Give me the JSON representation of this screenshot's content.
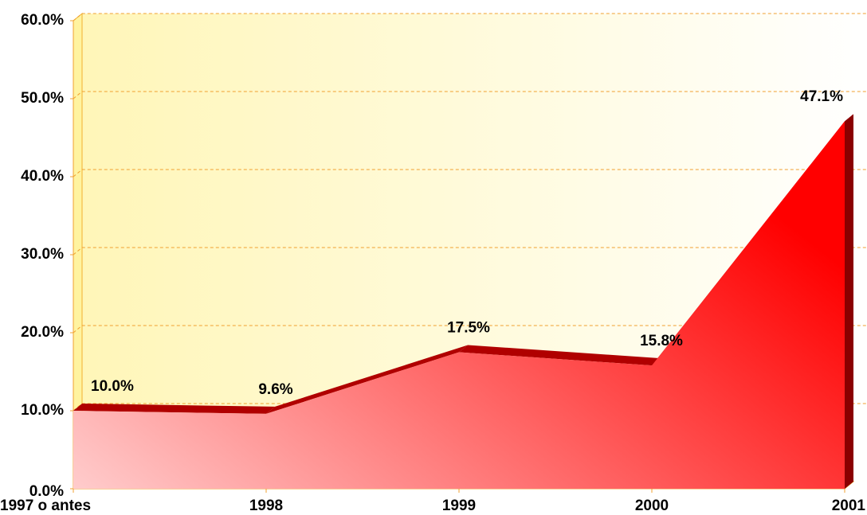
{
  "chart_data": {
    "type": "area",
    "categories": [
      "1997 o antes",
      "1998",
      "1999",
      "2000",
      "2001"
    ],
    "values": [
      10.0,
      9.6,
      17.5,
      15.8,
      47.1
    ],
    "value_labels": [
      "10.0%",
      "9.6%",
      "17.5%",
      "15.8%",
      "47.1%"
    ],
    "color": "#ff0000",
    "ylim": [
      0,
      60
    ],
    "yticks": [
      {
        "value": 0,
        "label": "0.0%"
      },
      {
        "value": 10,
        "label": "10.0%"
      },
      {
        "value": 20,
        "label": "20.0%"
      },
      {
        "value": 30,
        "label": "30.0%"
      },
      {
        "value": 40,
        "label": "40.0%"
      },
      {
        "value": 50,
        "label": "50.0%"
      },
      {
        "value": 60,
        "label": "60.0%"
      }
    ],
    "grid": true
  }
}
